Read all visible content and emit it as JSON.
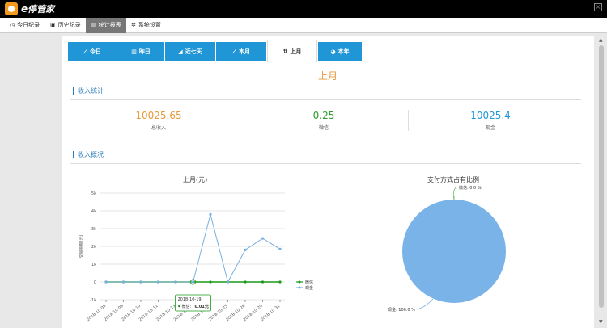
{
  "app": {
    "name": "停管家"
  },
  "nav": {
    "items": [
      {
        "label": "今日纪录",
        "icon": "clock-icon"
      },
      {
        "label": "历史纪录",
        "icon": "calendar-icon"
      },
      {
        "label": "统计报表",
        "icon": "bar-chart-icon",
        "active": true
      },
      {
        "label": "系统设置",
        "icon": "gear-icon"
      }
    ]
  },
  "tabs": [
    {
      "label": "今日",
      "icon": "line-chart-icon"
    },
    {
      "label": "昨日",
      "icon": "bar-chart-icon"
    },
    {
      "label": "近七天",
      "icon": "area-chart-icon"
    },
    {
      "label": "本月",
      "icon": "line-chart-icon"
    },
    {
      "label": "上月",
      "icon": "sort-icon",
      "active": true
    },
    {
      "label": "本年",
      "icon": "pie-chart-icon"
    }
  ],
  "period_title": "上月",
  "income": {
    "section_title": "收入统计",
    "total": {
      "value": "10025.65",
      "label": "总收入",
      "color": "#e59a3b"
    },
    "wechat": {
      "value": "0.25",
      "label": "微信",
      "color": "#2e9e2e"
    },
    "cash": {
      "value": "10025.4",
      "label": "现金",
      "color": "#2196d6"
    }
  },
  "overview": {
    "section_title": "收入概况"
  },
  "chart_data": [
    {
      "type": "line",
      "title": "上月(元)",
      "ylabel": "交易金额(元)",
      "ylim": [
        -1000,
        5000
      ],
      "yticks": [
        "-1k",
        "0",
        "1k",
        "2k",
        "3k",
        "4k",
        "5k"
      ],
      "categories": [
        "2018-10-08",
        "2018-10-09",
        "2018-10-10",
        "2018-10-11",
        "2018-10-13",
        "2018-10-19",
        "2018-10-23",
        "2018-10-25",
        "2018-10-26",
        "2018-10-29",
        "2018-10-31"
      ],
      "series": [
        {
          "name": "微信",
          "color": "#1a9a1a",
          "values": [
            0,
            0,
            0,
            0,
            0,
            0.01,
            0,
            0,
            0,
            0,
            0
          ]
        },
        {
          "name": "现金",
          "color": "#7aafde",
          "values": [
            0,
            0,
            0,
            0,
            0,
            0,
            3800,
            0,
            1800,
            2450,
            1850
          ]
        }
      ],
      "legend": "right",
      "tooltip": {
        "date": "2018-10-19",
        "label": "微信:",
        "value": "0.01元"
      }
    },
    {
      "type": "pie",
      "title": "支付方式占有比例",
      "slices": [
        {
          "name": "微信",
          "percent": 0.0,
          "label": "微信: 0.0 %",
          "color": "#6abf6a"
        },
        {
          "name": "现金",
          "percent": 100.0,
          "label": "现金: 100.0 %",
          "color": "#7ab3e8"
        }
      ]
    }
  ]
}
